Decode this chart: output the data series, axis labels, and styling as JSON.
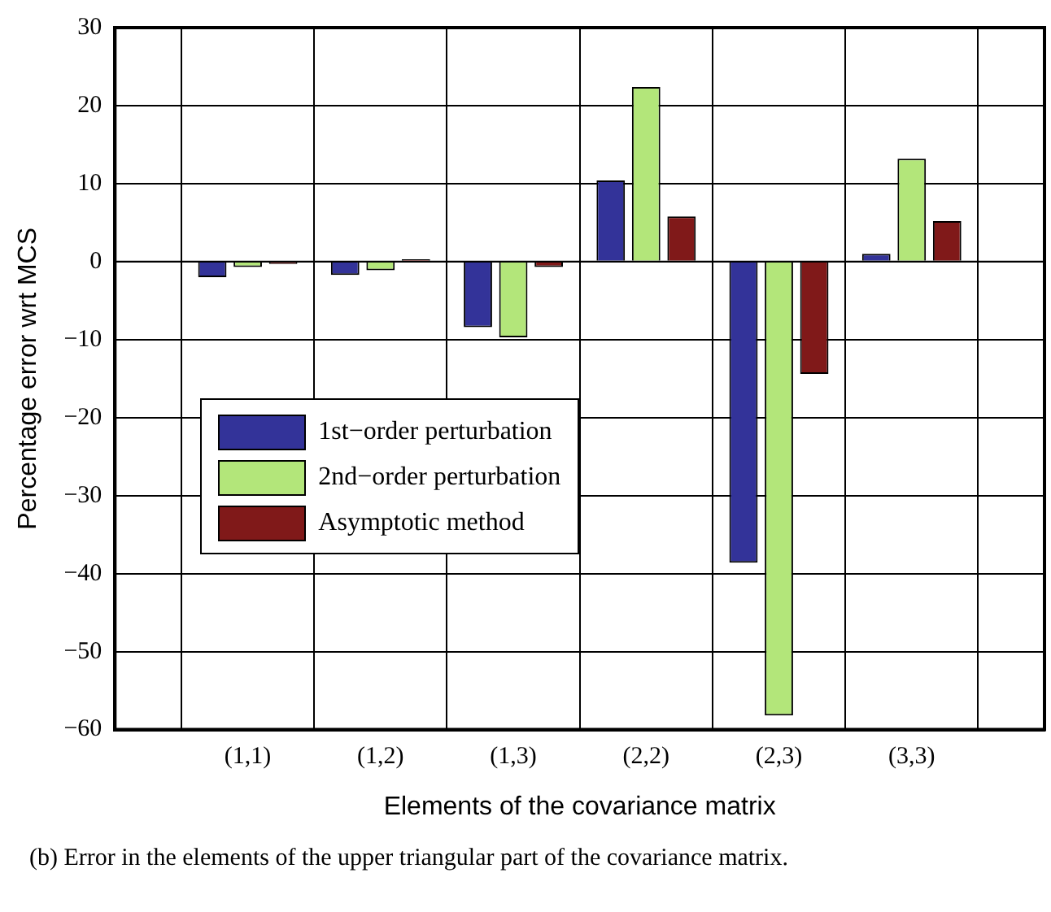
{
  "chart_data": {
    "type": "bar",
    "xlabel": "Elements of the covariance matrix",
    "ylabel": "Percentage error wrt MCS",
    "categories": [
      "(1,1)",
      "(1,2)",
      "(1,3)",
      "(2,2)",
      "(2,3)",
      "(3,3)"
    ],
    "series": [
      {
        "name": "1st−order perturbation",
        "color": "#333399",
        "values": [
          -2,
          -1.7,
          -8.4,
          10.4,
          -38.6,
          1.0
        ]
      },
      {
        "name": "2nd−order perturbation",
        "color": "#b3e67a",
        "values": [
          -0.7,
          -1.1,
          -9.7,
          22.4,
          -58.2,
          13.2
        ]
      },
      {
        "name": "Asymptotic method",
        "color": "#801919",
        "values": [
          -0.3,
          0.3,
          -0.7,
          5.8,
          -14.4,
          5.2
        ]
      }
    ],
    "ylim": [
      -60,
      30
    ],
    "yticks": [
      -60,
      -50,
      -40,
      -30,
      -20,
      -10,
      0,
      10,
      20,
      30
    ],
    "grid": true,
    "legend": "center left",
    "annotations": [
      "(b)   Error in the elements of the upper triangular part of the covariance matrix."
    ]
  }
}
